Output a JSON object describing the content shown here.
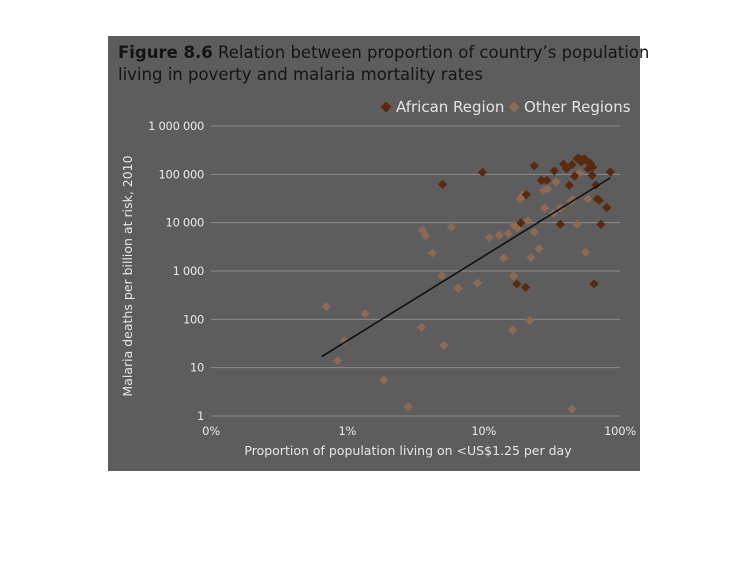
{
  "figure": {
    "title_bold": "Figure 8.6",
    "title_line1_rest": " Relation between proportion of country’s population",
    "title_line2": "living in poverty and malaria mortality rates"
  },
  "chart_data": {
    "type": "scatter",
    "title": "Figure 8.6 Relation between proportion of country’s population living in poverty and malaria mortality rates",
    "xlabel": "Proportion of population living on <US$1.25 per day",
    "ylabel": "Malaria deaths per billion at risk, 2010",
    "x_scale": "log",
    "y_scale": "log",
    "xlim_percent": [
      0.1,
      100
    ],
    "ylim": [
      1,
      1000000
    ],
    "x_ticks": [
      {
        "value": 0.1,
        "label": "0%"
      },
      {
        "value": 1,
        "label": "1%"
      },
      {
        "value": 10,
        "label": "10%"
      },
      {
        "value": 100,
        "label": "100%"
      }
    ],
    "y_ticks": [
      {
        "value": 1,
        "label": "1"
      },
      {
        "value": 10,
        "label": "10"
      },
      {
        "value": 100,
        "label": "100"
      },
      {
        "value": 1000,
        "label": "1 000"
      },
      {
        "value": 10000,
        "label": "10 000"
      },
      {
        "value": 100000,
        "label": "100 000"
      },
      {
        "value": 1000000,
        "label": "1 000 000"
      }
    ],
    "grid": "horizontal",
    "legend_position": "top-right",
    "colors": {
      "African Region": "#5a2a10",
      "Other Regions": "#8e6a55",
      "trend": "#111111"
    },
    "trend_line": {
      "x": [
        0.65,
        85
      ],
      "y": [
        17,
        85000
      ]
    },
    "series": [
      {
        "name": "African Region",
        "points": [
          [
            5,
            62000
          ],
          [
            9.8,
            110000
          ],
          [
            17.5,
            540
          ],
          [
            18.7,
            9900
          ],
          [
            20.3,
            460
          ],
          [
            20.5,
            38000
          ],
          [
            23.5,
            150000
          ],
          [
            26.5,
            75000
          ],
          [
            29,
            75000
          ],
          [
            33,
            118000
          ],
          [
            36.5,
            9300
          ],
          [
            38.5,
            163000
          ],
          [
            40.5,
            130000
          ],
          [
            42.5,
            59000
          ],
          [
            44.5,
            158000
          ],
          [
            46.5,
            92000
          ],
          [
            48.5,
            210000
          ],
          [
            50,
            215000
          ],
          [
            52,
            180000
          ],
          [
            54.5,
            210000
          ],
          [
            56.5,
            195000
          ],
          [
            58.5,
            130000
          ],
          [
            60.5,
            170000
          ],
          [
            62.5,
            95000
          ],
          [
            64.5,
            540
          ],
          [
            66.5,
            60000
          ],
          [
            68,
            31000
          ],
          [
            70.5,
            29000
          ],
          [
            72.5,
            9200
          ],
          [
            80,
            20500
          ],
          [
            85,
            112000
          ],
          [
            63,
            140000
          ]
        ]
      },
      {
        "name": "Other Regions",
        "points": [
          [
            0.7,
            185
          ],
          [
            0.85,
            14
          ],
          [
            0.95,
            36
          ],
          [
            1.35,
            130
          ],
          [
            1.85,
            5.5
          ],
          [
            2.8,
            1.55
          ],
          [
            3.5,
            68
          ],
          [
            3.55,
            7000
          ],
          [
            3.75,
            5400
          ],
          [
            4.2,
            2350
          ],
          [
            4.95,
            800
          ],
          [
            5.1,
            29
          ],
          [
            5.8,
            8100
          ],
          [
            6.5,
            440
          ],
          [
            9,
            560
          ],
          [
            11,
            4900
          ],
          [
            13,
            5500
          ],
          [
            14,
            1850
          ],
          [
            15.2,
            6000
          ],
          [
            16.3,
            60
          ],
          [
            16.6,
            780
          ],
          [
            16.7,
            8800
          ],
          [
            17.7,
            7800
          ],
          [
            18.5,
            31000
          ],
          [
            19.3,
            37000
          ],
          [
            21,
            11000
          ],
          [
            21.8,
            95
          ],
          [
            22.2,
            1900
          ],
          [
            23.5,
            6400
          ],
          [
            25.5,
            2900
          ],
          [
            27.5,
            47000
          ],
          [
            29.5,
            50000
          ],
          [
            32.5,
            15500
          ],
          [
            36.5,
            20000
          ],
          [
            43.5,
            28000
          ],
          [
            44.5,
            1.4
          ],
          [
            48.5,
            9200
          ],
          [
            50.5,
            105000
          ],
          [
            56,
            2450
          ],
          [
            58,
            31000
          ],
          [
            45,
            30000
          ],
          [
            28,
            20000
          ],
          [
            34,
            70000
          ]
        ]
      }
    ]
  }
}
